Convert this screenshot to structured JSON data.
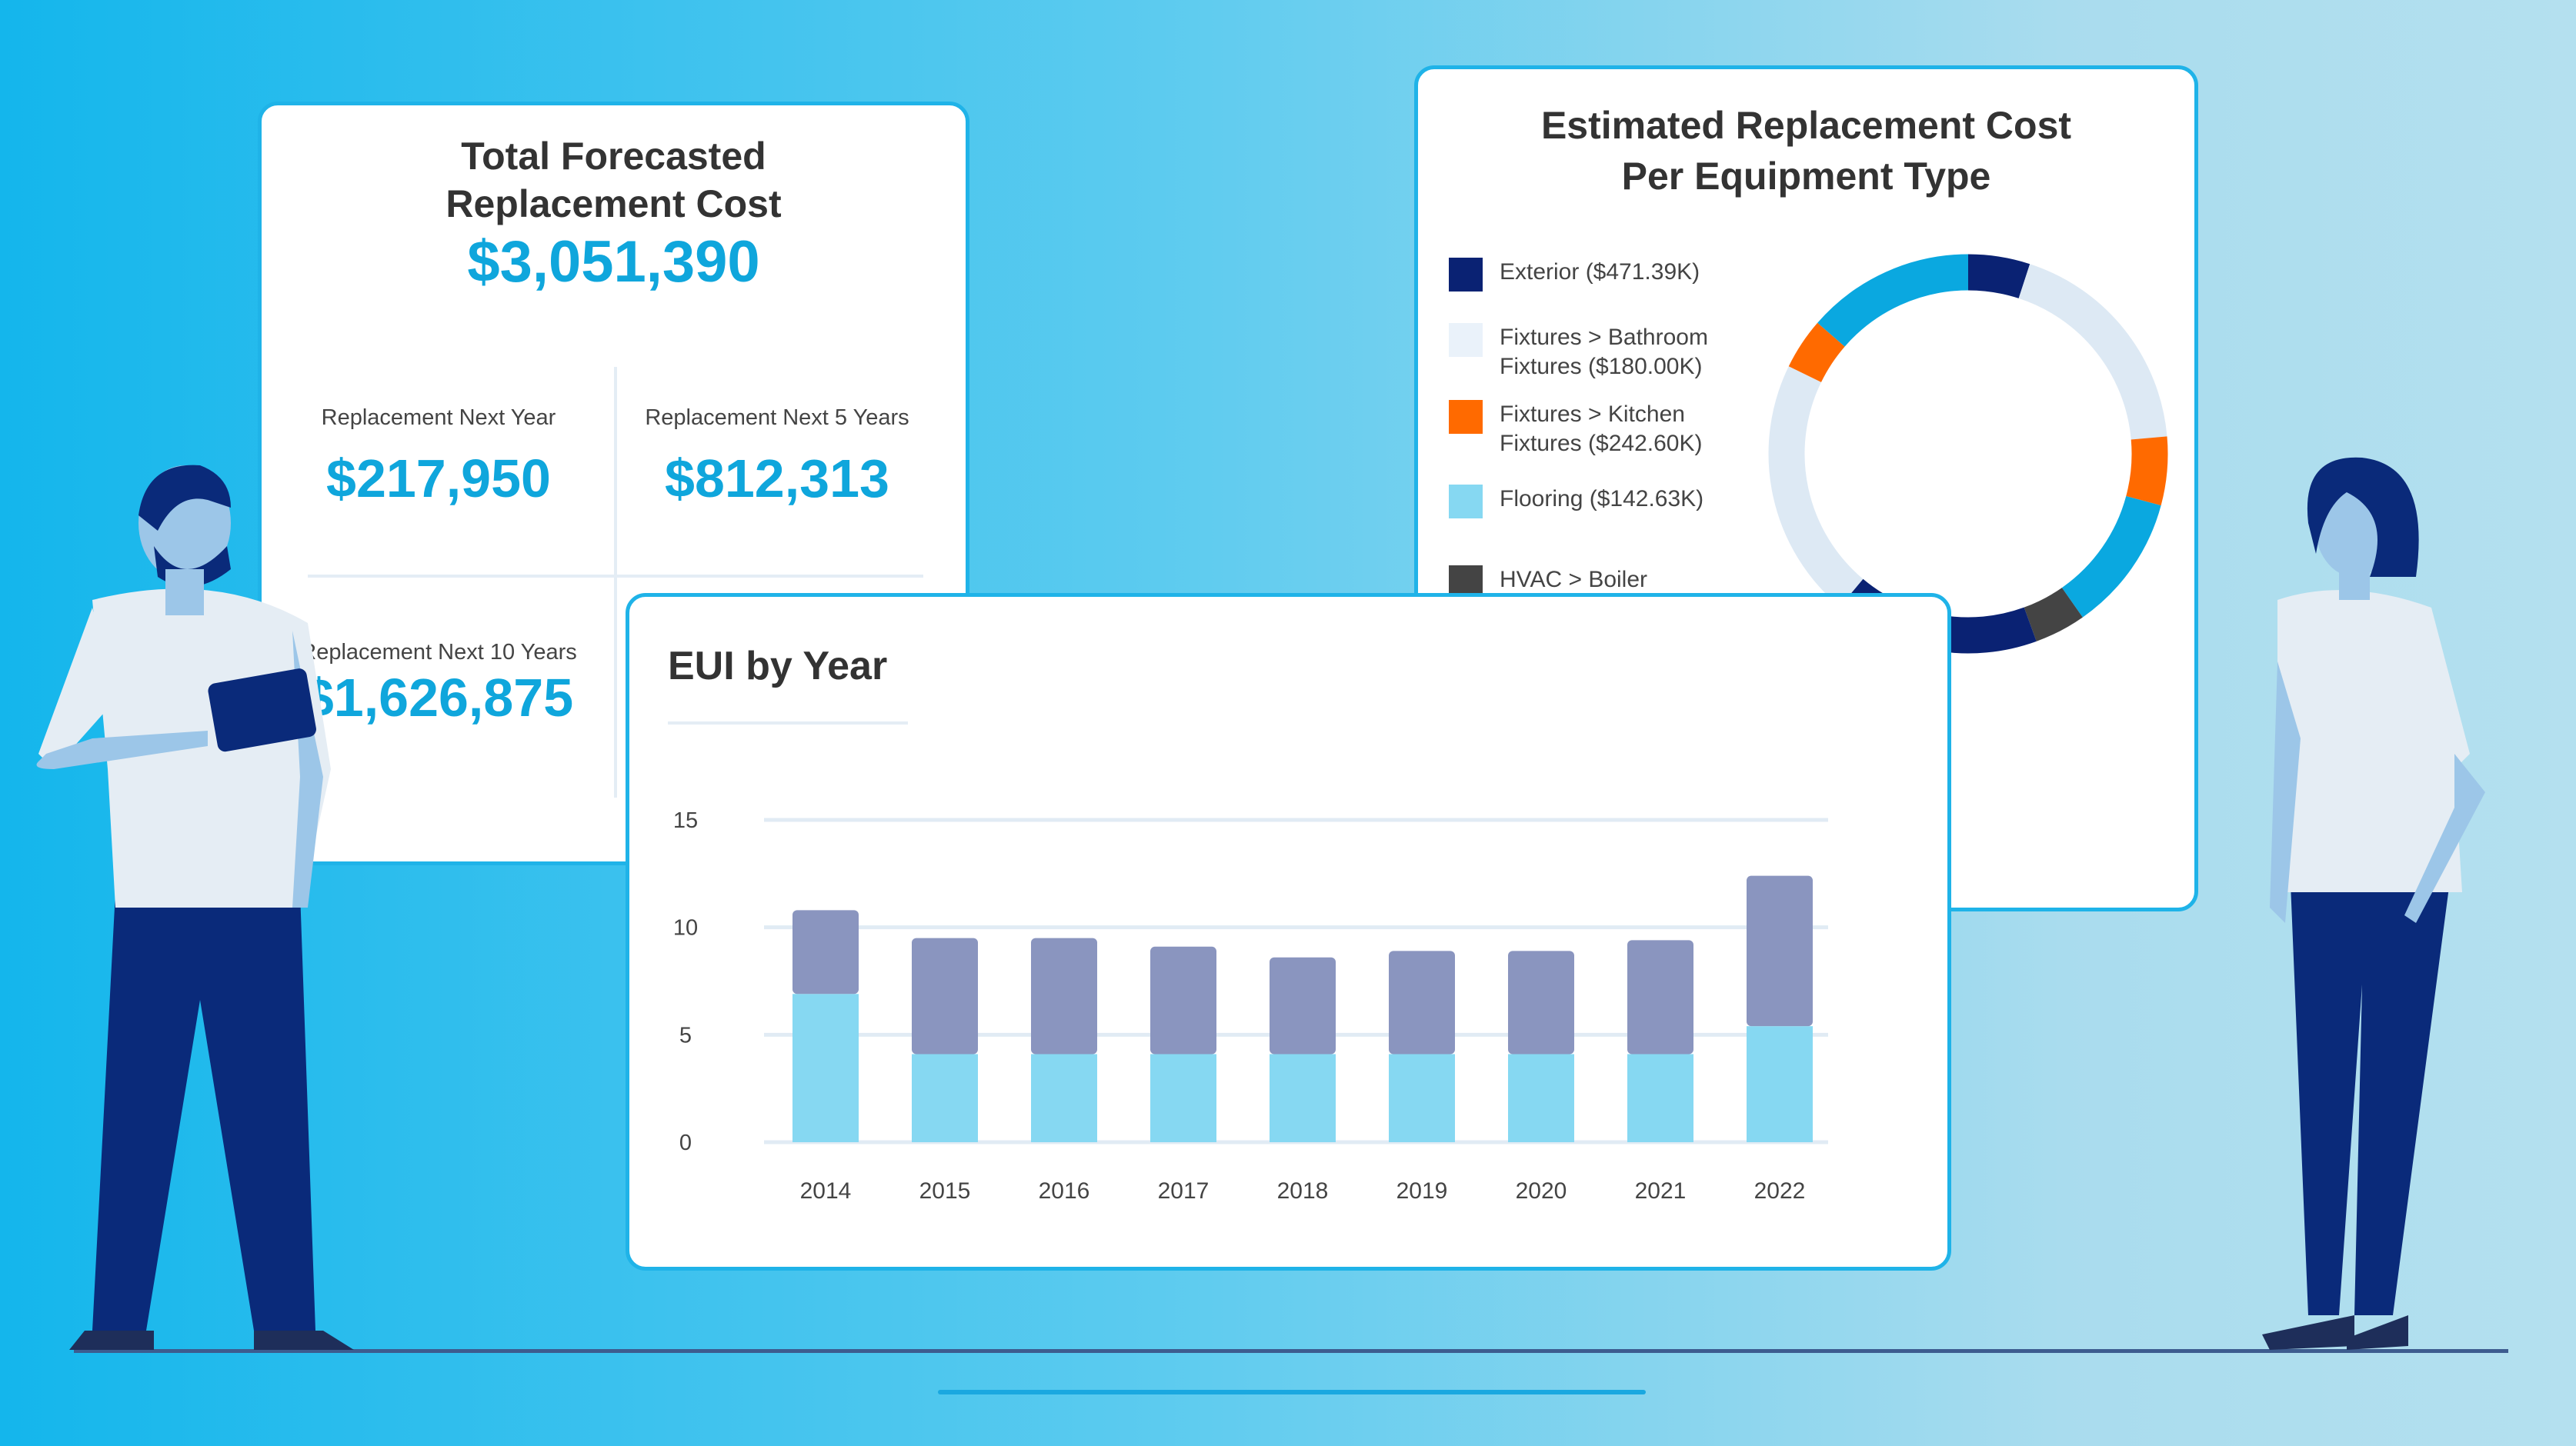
{
  "total_card": {
    "title_line1": "Total Forecasted",
    "title_line2": "Replacement Cost",
    "total": "$3,051,390",
    "next_year_label": "Replacement Next Year",
    "next_year_value": "$217,950",
    "next_5_label": "Replacement Next 5 Years",
    "next_5_value": "$812,313",
    "next_10_label": "Replacement Next 10 Years",
    "next_10_value": "$1,626,875"
  },
  "donut_card": {
    "title_line1": "Estimated Replacement Cost",
    "title_line2": "Per Equipment Type",
    "legend": [
      {
        "label1": "Exterior ($471.39K)",
        "label2": "",
        "color": "#0a2273"
      },
      {
        "label1": "Fixtures > Bathroom",
        "label2": "Fixtures ($180.00K)",
        "color": "#eaf2fa"
      },
      {
        "label1": "Fixtures > Kitchen",
        "label2": "Fixtures ($242.60K)",
        "color": "#ff6a00"
      },
      {
        "label1": "Flooring ($142.63K)",
        "label2": "",
        "color": "#86d8f2"
      },
      {
        "label1": "HVAC > Boiler",
        "label2": "",
        "color": "#444444"
      }
    ]
  },
  "chart_data": {
    "type": "bar",
    "stacked": true,
    "title": "EUI by Year",
    "categories": [
      "2014",
      "2015",
      "2016",
      "2017",
      "2018",
      "2019",
      "2020",
      "2021",
      "2022"
    ],
    "series": [
      {
        "values": [
          6.9,
          4.1,
          4.1,
          4.1,
          4.1,
          4.1,
          4.1,
          4.1,
          5.4
        ],
        "color": "#86d8f2"
      },
      {
        "values": [
          3.9,
          5.4,
          5.4,
          5.0,
          4.5,
          4.8,
          4.8,
          5.3,
          7.0
        ],
        "color": "#8a95bf"
      }
    ],
    "yticks": [
      "0",
      "5",
      "10",
      "15"
    ],
    "ylim": [
      0,
      15
    ],
    "grid": true
  },
  "colors": {
    "accent": "#0fa6dc",
    "navy": "#0a2273"
  }
}
